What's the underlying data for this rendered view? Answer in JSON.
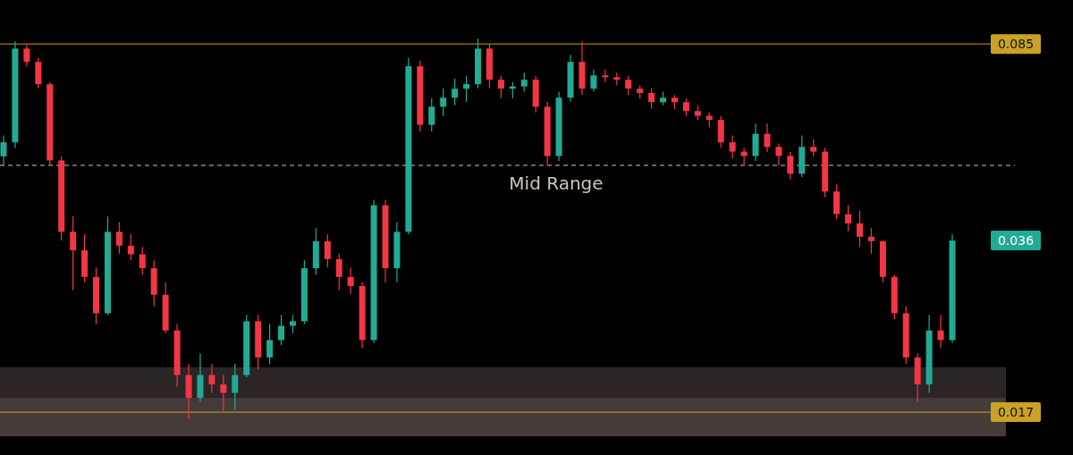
{
  "chart_data": {
    "type": "candlestick",
    "log": "y",
    "ylim": [
      0.0141,
      0.103
    ],
    "categories": [
      null,
      null,
      null,
      null,
      null,
      null,
      null,
      null,
      null,
      null,
      null,
      null,
      null,
      null,
      null,
      null,
      null,
      null,
      null,
      null,
      null,
      null,
      null,
      null,
      null,
      null,
      null,
      null,
      null,
      null,
      null,
      null,
      null,
      null,
      null,
      null,
      null,
      null,
      null,
      null,
      null,
      null,
      null,
      null,
      null,
      null,
      null,
      null,
      null,
      null,
      null,
      null,
      null,
      null,
      null,
      null,
      null,
      null,
      null,
      null,
      null,
      null,
      null,
      null,
      null,
      null,
      null,
      null,
      null,
      null,
      null,
      null,
      null,
      null,
      null,
      null,
      null,
      null,
      null,
      null,
      null,
      null,
      null
    ],
    "ohlc": [
      [
        0.052,
        0.057,
        0.05,
        0.0553
      ],
      [
        0.0553,
        0.086,
        0.054,
        0.0833
      ],
      [
        0.0833,
        0.085,
        0.077,
        0.0786
      ],
      [
        0.0786,
        0.08,
        0.07,
        0.0713
      ],
      [
        0.0713,
        0.072,
        0.05,
        0.0511
      ],
      [
        0.0511,
        0.052,
        0.036,
        0.0374
      ],
      [
        0.0374,
        0.04,
        0.029,
        0.0345
      ],
      [
        0.0345,
        0.037,
        0.03,
        0.0307
      ],
      [
        0.0307,
        0.032,
        0.025,
        0.0262
      ],
      [
        0.0262,
        0.04,
        0.026,
        0.0374
      ],
      [
        0.0374,
        0.039,
        0.034,
        0.0352
      ],
      [
        0.0352,
        0.037,
        0.033,
        0.0339
      ],
      [
        0.0339,
        0.035,
        0.031,
        0.0319
      ],
      [
        0.0319,
        0.033,
        0.027,
        0.0284
      ],
      [
        0.0284,
        0.03,
        0.024,
        0.0243
      ],
      [
        0.0243,
        0.025,
        0.019,
        0.02
      ],
      [
        0.02,
        0.021,
        0.0165,
        0.0181
      ],
      [
        0.0181,
        0.022,
        0.0178,
        0.02
      ],
      [
        0.02,
        0.021,
        0.0185,
        0.0192
      ],
      [
        0.0192,
        0.02,
        0.017,
        0.0185
      ],
      [
        0.0185,
        0.021,
        0.0172,
        0.02
      ],
      [
        0.02,
        0.026,
        0.0198,
        0.0253
      ],
      [
        0.0253,
        0.026,
        0.0205,
        0.0216
      ],
      [
        0.0216,
        0.025,
        0.021,
        0.0233
      ],
      [
        0.0233,
        0.026,
        0.0228,
        0.0248
      ],
      [
        0.0248,
        0.026,
        0.024,
        0.0253
      ],
      [
        0.0253,
        0.033,
        0.025,
        0.0319
      ],
      [
        0.0319,
        0.038,
        0.031,
        0.0359
      ],
      [
        0.0359,
        0.037,
        0.032,
        0.0332
      ],
      [
        0.0332,
        0.034,
        0.029,
        0.0307
      ],
      [
        0.0307,
        0.032,
        0.0285,
        0.0295
      ],
      [
        0.0295,
        0.03,
        0.0225,
        0.0233
      ],
      [
        0.0233,
        0.043,
        0.023,
        0.042
      ],
      [
        0.042,
        0.043,
        0.03,
        0.0319
      ],
      [
        0.0319,
        0.039,
        0.03,
        0.0374
      ],
      [
        0.0374,
        0.08,
        0.037,
        0.0771
      ],
      [
        0.0771,
        0.079,
        0.058,
        0.0597
      ],
      [
        0.0597,
        0.067,
        0.058,
        0.0646
      ],
      [
        0.0646,
        0.07,
        0.062,
        0.0672
      ],
      [
        0.0672,
        0.073,
        0.065,
        0.0699
      ],
      [
        0.0699,
        0.074,
        0.066,
        0.0713
      ],
      [
        0.0713,
        0.087,
        0.07,
        0.0833
      ],
      [
        0.0833,
        0.085,
        0.07,
        0.0727
      ],
      [
        0.0727,
        0.074,
        0.067,
        0.0699
      ],
      [
        0.0699,
        0.072,
        0.067,
        0.0706
      ],
      [
        0.0706,
        0.075,
        0.069,
        0.0727
      ],
      [
        0.0727,
        0.074,
        0.063,
        0.0646
      ],
      [
        0.0646,
        0.066,
        0.05,
        0.0521
      ],
      [
        0.0521,
        0.069,
        0.051,
        0.0672
      ],
      [
        0.0672,
        0.081,
        0.066,
        0.0786
      ],
      [
        0.0786,
        0.086,
        0.068,
        0.0699
      ],
      [
        0.0699,
        0.076,
        0.069,
        0.0741
      ],
      [
        0.0741,
        0.076,
        0.072,
        0.0735
      ],
      [
        0.0735,
        0.075,
        0.071,
        0.0727
      ],
      [
        0.0727,
        0.074,
        0.068,
        0.0699
      ],
      [
        0.0699,
        0.071,
        0.067,
        0.0686
      ],
      [
        0.0686,
        0.07,
        0.064,
        0.0659
      ],
      [
        0.0659,
        0.069,
        0.065,
        0.0672
      ],
      [
        0.0672,
        0.068,
        0.064,
        0.0659
      ],
      [
        0.0659,
        0.067,
        0.062,
        0.0634
      ],
      [
        0.0634,
        0.065,
        0.061,
        0.0621
      ],
      [
        0.0621,
        0.063,
        0.059,
        0.061
      ],
      [
        0.061,
        0.062,
        0.054,
        0.0553
      ],
      [
        0.0553,
        0.057,
        0.0515,
        0.0531
      ],
      [
        0.0531,
        0.054,
        0.05,
        0.0521
      ],
      [
        0.0521,
        0.06,
        0.051,
        0.0574
      ],
      [
        0.0574,
        0.06,
        0.053,
        0.0542
      ],
      [
        0.0542,
        0.055,
        0.05,
        0.0521
      ],
      [
        0.0521,
        0.053,
        0.047,
        0.0482
      ],
      [
        0.0482,
        0.057,
        0.0475,
        0.0542
      ],
      [
        0.0542,
        0.056,
        0.052,
        0.0531
      ],
      [
        0.0531,
        0.054,
        0.0435,
        0.0446
      ],
      [
        0.0446,
        0.046,
        0.0395,
        0.0404
      ],
      [
        0.0404,
        0.042,
        0.0375,
        0.0388
      ],
      [
        0.0388,
        0.041,
        0.035,
        0.0366
      ],
      [
        0.0366,
        0.038,
        0.034,
        0.0359
      ],
      [
        0.0359,
        0.036,
        0.03,
        0.0307
      ],
      [
        0.0307,
        0.031,
        0.0255,
        0.0262
      ],
      [
        0.0262,
        0.027,
        0.021,
        0.0216
      ],
      [
        0.0216,
        0.022,
        0.0178,
        0.0192
      ],
      [
        0.0192,
        0.026,
        0.0185,
        0.0243
      ],
      [
        0.0243,
        0.026,
        0.0225,
        0.0233
      ],
      [
        0.0233,
        0.037,
        0.023,
        0.036
      ]
    ],
    "ref_lines": [
      {
        "axis": "y",
        "value": 0.085,
        "label": "0.085",
        "color": "#c9a227",
        "line_style": "solid"
      },
      {
        "axis": "y",
        "value": 0.05,
        "label": "Mid Range",
        "color": "#cfc6b0",
        "line_style": "dashed"
      },
      {
        "axis": "y",
        "value": 0.017,
        "label": "0.017",
        "color": "#c9a227",
        "line_style": "solid"
      }
    ],
    "bands": [
      {
        "axis": "y",
        "from": 0.0181,
        "to": 0.0207,
        "color": "#2b2525"
      },
      {
        "axis": "y",
        "from": 0.0153,
        "to": 0.0181,
        "color": "#453b39"
      }
    ],
    "annotations": [
      "0.036"
    ]
  }
}
